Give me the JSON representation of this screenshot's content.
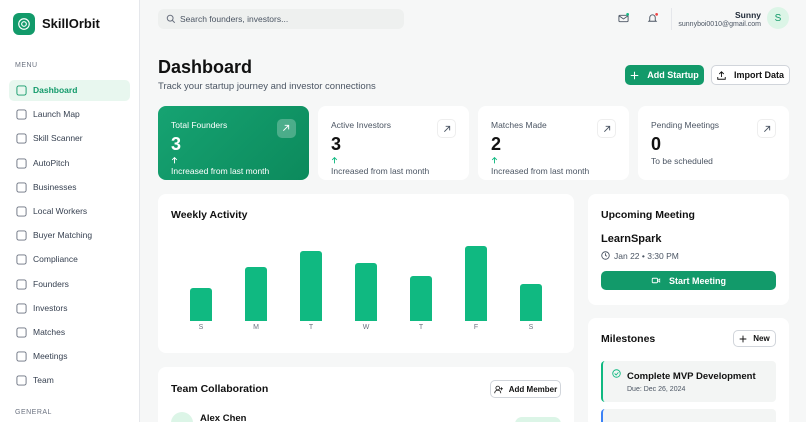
{
  "brand": "SkillOrbit",
  "search_placeholder": "Search founders, investors...",
  "user": {
    "name": "Sunny",
    "email": "sunnyboi0010@gmail.com",
    "initial": "S"
  },
  "sidebar": {
    "menu_label": "MENU",
    "items": [
      "Dashboard",
      "Launch Map",
      "Skill Scanner",
      "AutoPitch",
      "Businesses",
      "Local Workers",
      "Buyer Matching",
      "Compliance",
      "Founders",
      "Investors",
      "Matches",
      "Meetings",
      "Team"
    ],
    "general_label": "GENERAL"
  },
  "header": {
    "title": "Dashboard",
    "subtitle": "Track your startup journey and investor connections",
    "primary_button": "Add Startup",
    "secondary_button": "Import Data"
  },
  "stats": [
    {
      "label": "Total Founders",
      "value": 3,
      "note": "Increased from last month"
    },
    {
      "label": "Active Investors",
      "value": 3,
      "note": "Increased from last month"
    },
    {
      "label": "Matches Made",
      "value": 2,
      "note": "Increased from last month"
    },
    {
      "label": "Pending Meetings",
      "value": 0,
      "note": "To be scheduled"
    }
  ],
  "chart_data": {
    "type": "bar",
    "title": "Weekly Activity",
    "categories": [
      "S",
      "M",
      "T",
      "W",
      "T",
      "F",
      "S"
    ],
    "values": [
      33,
      54,
      70,
      58,
      45,
      75,
      37
    ],
    "color": "#10b981"
  },
  "upcoming_meeting": {
    "title": "Upcoming Meeting",
    "name": "LearnSpark",
    "time": "Jan 22 • 3:30 PM",
    "button": "Start Meeting"
  },
  "milestones": {
    "title": "Milestones",
    "button": "New",
    "items": [
      {
        "title": "Complete MVP Development",
        "due": "Due: Dec 26, 2024"
      }
    ]
  },
  "team": {
    "title": "Team Collaboration",
    "button": "Add Member",
    "members": [
      "Alex Chen"
    ]
  }
}
